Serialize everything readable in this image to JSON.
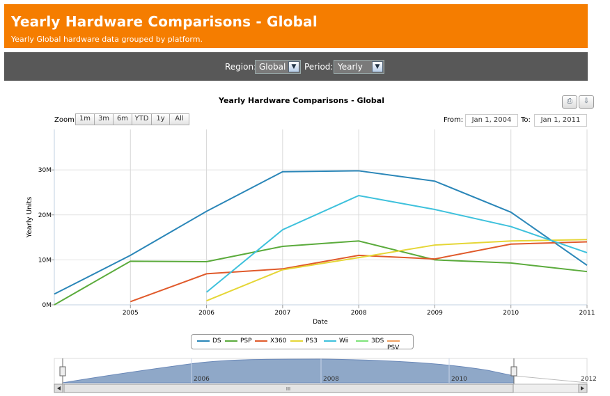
{
  "header": {
    "title": "Yearly Hardware Comparisons - Global",
    "subtitle": "Yearly Global hardware data grouped by platform."
  },
  "filters": {
    "region_label": "Region:",
    "region_value": "Global",
    "period_label": "Period:",
    "period_value": "Yearly"
  },
  "toolbar": {
    "print_icon": "print-icon",
    "download_icon": "download-icon"
  },
  "zoom": {
    "label": "Zoom",
    "buttons": [
      "1m",
      "3m",
      "6m",
      "YTD",
      "1y",
      "All"
    ]
  },
  "range": {
    "from_label": "From:",
    "from_value": "Jan 1, 2004",
    "to_label": "To:",
    "to_value": "Jan 1, 2011"
  },
  "navigator": {
    "ticks": [
      "2006",
      "2008",
      "2010",
      "2012"
    ],
    "scroll_grip": "III"
  },
  "colors": {
    "header": "#f57d00",
    "filter_bar": "#585858",
    "navigator_fill": "#8fa8c8"
  },
  "chart_data": {
    "type": "line",
    "title": "Yearly Hardware Comparisons - Global",
    "xlabel": "Date",
    "ylabel": "Yearly Units",
    "x": [
      2004,
      2005,
      2006,
      2007,
      2008,
      2009,
      2010,
      2011
    ],
    "xlim": [
      2004,
      2011
    ],
    "ylim": [
      0,
      39000000
    ],
    "y_ticks": [
      0,
      10000000,
      20000000,
      30000000
    ],
    "y_tick_labels": [
      "0M",
      "10M",
      "20M",
      "30M"
    ],
    "x_ticks": [
      2005,
      2006,
      2007,
      2008,
      2009,
      2010,
      2011
    ],
    "grid": true,
    "legend": "bottom",
    "series": [
      {
        "name": "DS",
        "color": "#2a86b8",
        "values": [
          2400000,
          11000000,
          20800000,
          29600000,
          29800000,
          27500000,
          20600000,
          8800000
        ]
      },
      {
        "name": "PSP",
        "color": "#5bab3c",
        "values": [
          0,
          9700000,
          9600000,
          13000000,
          14200000,
          10000000,
          9300000,
          7400000
        ]
      },
      {
        "name": "X360",
        "color": "#e05a2b",
        "values": [
          null,
          700000,
          6900000,
          8000000,
          11000000,
          10200000,
          13500000,
          14000000
        ]
      },
      {
        "name": "PS3",
        "color": "#e5d636",
        "values": [
          null,
          null,
          900000,
          7800000,
          10500000,
          13300000,
          14200000,
          14500000
        ]
      },
      {
        "name": "Wii",
        "color": "#3ec1dc",
        "values": [
          null,
          null,
          2800000,
          16700000,
          24300000,
          21200000,
          17400000,
          11600000
        ]
      },
      {
        "name": "3DS",
        "color": "#7fe37a",
        "values": [
          null,
          null,
          null,
          null,
          null,
          null,
          null,
          null
        ]
      },
      {
        "name": "PSV",
        "color": "#f0a060",
        "values": [
          null,
          null,
          null,
          null,
          null,
          null,
          null,
          null
        ]
      }
    ]
  }
}
